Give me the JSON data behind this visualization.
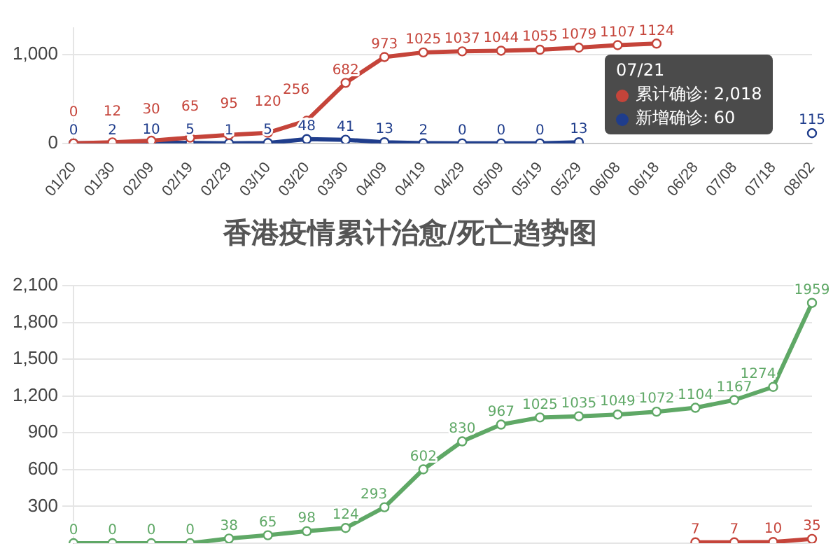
{
  "chart_data": [
    {
      "type": "line",
      "categories": [
        "01/20",
        "01/30",
        "02/09",
        "02/19",
        "02/29",
        "03/10",
        "03/20",
        "03/30",
        "04/09",
        "04/19",
        "04/29",
        "05/09",
        "05/19",
        "05/29",
        "06/08",
        "06/18",
        "06/28",
        "07/08",
        "07/18",
        "08/02"
      ],
      "series": [
        {
          "color": "#c5443a",
          "values": [
            0,
            12,
            30,
            65,
            95,
            120,
            256,
            682,
            973,
            1025,
            1037,
            1044,
            1055,
            1079,
            1107,
            1124,
            null,
            null,
            null,
            null
          ]
        },
        {
          "color": "#1f3d8c",
          "values": [
            0,
            2,
            10,
            5,
            1,
            5,
            48,
            41,
            13,
            2,
            0,
            0,
            0,
            13,
            null,
            null,
            null,
            null,
            null,
            115
          ]
        }
      ],
      "ylim": [
        0,
        1300
      ],
      "yticks": [
        0,
        {
          "value": 1000,
          "label": "1,000"
        }
      ],
      "grid": "y",
      "marker": "circle",
      "data_labels": true,
      "legend": false,
      "annotations": [
        "07/21",
        "累计确诊: 2,018",
        "新增确诊: 60"
      ]
    },
    {
      "type": "line",
      "title": "香港疫情累计治愈/死亡趋势图",
      "categories": [
        null,
        null,
        null,
        null,
        null,
        null,
        null,
        null,
        null,
        null,
        null,
        null,
        null,
        null,
        null,
        null,
        null,
        null,
        null,
        null
      ],
      "series": [
        {
          "color": "#5fa866",
          "values": [
            0,
            0,
            0,
            0,
            38,
            65,
            98,
            124,
            293,
            602,
            830,
            967,
            1025,
            1035,
            1049,
            1072,
            1104,
            1167,
            1274,
            1959
          ]
        },
        {
          "color": "#c5443a",
          "values": [
            null,
            null,
            null,
            null,
            null,
            null,
            null,
            null,
            null,
            null,
            null,
            null,
            null,
            null,
            null,
            null,
            7,
            7,
            10,
            35
          ]
        }
      ],
      "ylim": [
        0,
        2100
      ],
      "yticks": [
        {
          "value": 300,
          "label": "300"
        },
        {
          "value": 600,
          "label": "600"
        },
        {
          "value": 900,
          "label": "900"
        },
        {
          "value": 1200,
          "label": "1,200"
        },
        {
          "value": 1500,
          "label": "1,500"
        },
        {
          "value": 1800,
          "label": "1,800"
        },
        {
          "value": 2100,
          "label": "2,100"
        }
      ],
      "grid": "y",
      "marker": "circle",
      "data_labels": true,
      "legend": false,
      "tick_labels": "y"
    }
  ]
}
